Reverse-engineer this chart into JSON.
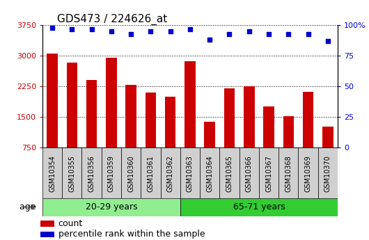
{
  "title": "GDS473 / 224626_at",
  "samples": [
    "GSM10354",
    "GSM10355",
    "GSM10356",
    "GSM10359",
    "GSM10360",
    "GSM10361",
    "GSM10362",
    "GSM10363",
    "GSM10364",
    "GSM10365",
    "GSM10366",
    "GSM10367",
    "GSM10368",
    "GSM10369",
    "GSM10370"
  ],
  "counts": [
    3060,
    2840,
    2400,
    2960,
    2280,
    2100,
    2000,
    2870,
    1390,
    2200,
    2260,
    1760,
    1520,
    2120,
    1270
  ],
  "percentile_ranks": [
    98,
    97,
    97,
    95,
    93,
    95,
    95,
    97,
    88,
    93,
    95,
    93,
    93,
    93,
    87
  ],
  "group1_label": "20-29 years",
  "group1_count": 7,
  "group2_label": "65-71 years",
  "group2_count": 8,
  "age_label": "age",
  "ylim_left": [
    750,
    3750
  ],
  "ylim_right": [
    0,
    100
  ],
  "yticks_left": [
    750,
    1500,
    2250,
    3000,
    3750
  ],
  "yticks_right": [
    0,
    25,
    50,
    75,
    100
  ],
  "bar_color": "#cc0000",
  "dot_color": "#0000cc",
  "group1_bg": "#90ee90",
  "group2_bg": "#33cc33",
  "plot_bg": "#ffffff",
  "xticklabel_bg": "#d0d0d0",
  "legend_count_label": "count",
  "legend_pct_label": "percentile rank within the sample",
  "grid_color": "#000000",
  "title_fontsize": 11,
  "tick_fontsize": 8,
  "label_fontsize": 9
}
